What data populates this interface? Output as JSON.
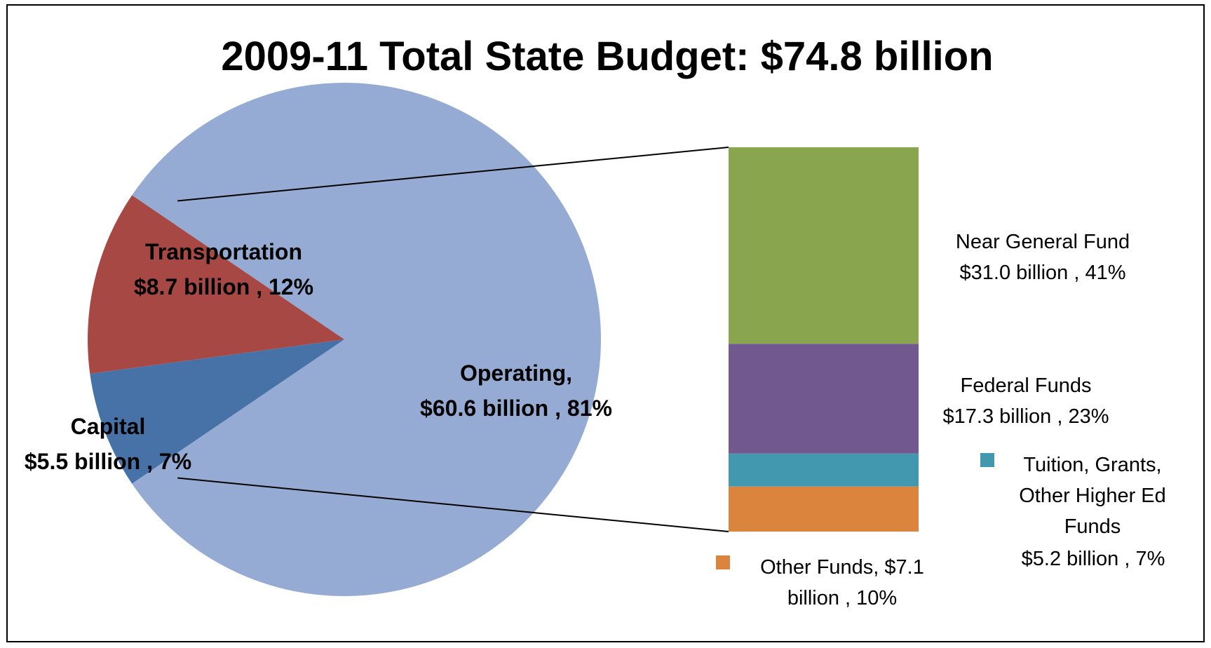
{
  "chart_data": [
    {
      "type": "pie",
      "title": "2009-11 Total State Budget: $74.8 billion",
      "slices": [
        {
          "name": "Operating,",
          "value_text": "$60.6 billion , 81%",
          "value": 60.6,
          "percent": 81,
          "color": "#95abd3"
        },
        {
          "name": "Transportation",
          "value_text": "$8.7 billion , 12%",
          "value": 8.7,
          "percent": 12,
          "color": "#a84844"
        },
        {
          "name": "Capital",
          "value_text": "$5.5 billion , 7%",
          "value": 5.5,
          "percent": 7,
          "color": "#4672a8"
        }
      ]
    },
    {
      "type": "bar",
      "stacked": true,
      "exploded_from": "Operating,",
      "segments": [
        {
          "name": "Near General Fund",
          "value_text": "$31.0 billion , 41%",
          "value": 31.0,
          "percent": 41,
          "color": "#89a54e"
        },
        {
          "name": "Federal Funds",
          "value_text": "$17.3 billion , 23%",
          "value": 17.3,
          "percent": 23,
          "color": "#71588f"
        },
        {
          "name": "Tuition, Grants, Other Higher Ed Funds",
          "lines": [
            "Tuition, Grants,",
            "Other Higher Ed",
            "Funds"
          ],
          "value_text": "$5.2 billion , 7%",
          "value": 5.2,
          "percent": 7,
          "color": "#4198af"
        },
        {
          "name": "Other Funds,",
          "lines": [
            "Other Funds,  $7.1",
            "billion , 10%"
          ],
          "value": 7.1,
          "percent": 10,
          "color": "#db843d"
        }
      ]
    }
  ]
}
